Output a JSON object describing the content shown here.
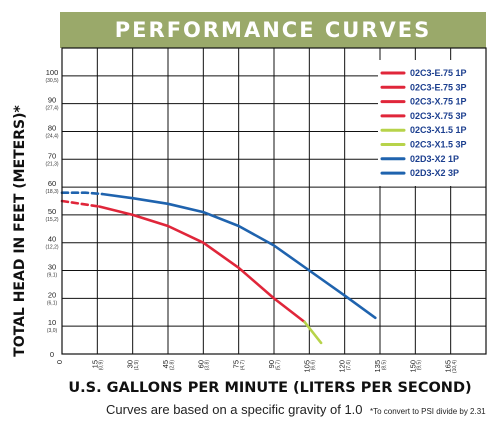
{
  "chart_data": {
    "type": "line",
    "title": "PERFORMANCE CURVES",
    "xlabel": "U.S. GALLONS PER MINUTE (LITERS PER SECOND)",
    "ylabel": "TOTAL HEAD IN FEET (METERS)*",
    "xlim": [
      0,
      180
    ],
    "ylim": [
      0,
      110
    ],
    "grid": true,
    "legend_position": "top-right",
    "x_ticks": [
      {
        "v": 0,
        "l": "0",
        "s": ""
      },
      {
        "v": 15,
        "l": "15",
        "s": "(0,9)"
      },
      {
        "v": 30,
        "l": "30",
        "s": "(1,9)"
      },
      {
        "v": 45,
        "l": "45",
        "s": "(2,8)"
      },
      {
        "v": 60,
        "l": "60",
        "s": "(3,8)"
      },
      {
        "v": 75,
        "l": "75",
        "s": "(4,7)"
      },
      {
        "v": 90,
        "l": "90",
        "s": "(5,7)"
      },
      {
        "v": 105,
        "l": "105",
        "s": "(6,6)"
      },
      {
        "v": 120,
        "l": "120",
        "s": "(7,6)"
      },
      {
        "v": 135,
        "l": "135",
        "s": "(8,5)"
      },
      {
        "v": 150,
        "l": "150",
        "s": "(9,5)"
      },
      {
        "v": 165,
        "l": "165",
        "s": "(10,4)"
      }
    ],
    "y_ticks": [
      {
        "v": 0,
        "l": "0",
        "s": ""
      },
      {
        "v": 10,
        "l": "10",
        "s": "(3,0)"
      },
      {
        "v": 20,
        "l": "20",
        "s": "(6,1)"
      },
      {
        "v": 30,
        "l": "30",
        "s": "(9,1)"
      },
      {
        "v": 40,
        "l": "40",
        "s": "(12,2)"
      },
      {
        "v": 50,
        "l": "50",
        "s": "(15,2)"
      },
      {
        "v": 60,
        "l": "60",
        "s": "(18,3)"
      },
      {
        "v": 70,
        "l": "70",
        "s": "(21,3)"
      },
      {
        "v": 80,
        "l": "80",
        "s": "(24,4)"
      },
      {
        "v": 90,
        "l": "90",
        "s": "(27,4)"
      },
      {
        "v": 100,
        "l": "100",
        "s": "(30,5)"
      }
    ],
    "legend": [
      {
        "label": "02C3-E.75 1P",
        "color": "#e0263a"
      },
      {
        "label": "02C3-E.75 3P",
        "color": "#e0263a"
      },
      {
        "label": "02C3-X.75 1P",
        "color": "#e0263a"
      },
      {
        "label": "02C3-X.75 3P",
        "color": "#e0263a"
      },
      {
        "label": "02C3-X1.5 1P",
        "color": "#b7d34a"
      },
      {
        "label": "02C3-X1.5 3P",
        "color": "#b7d34a"
      },
      {
        "label": "02D3-X2 1P",
        "color": "#1f63ae"
      },
      {
        "label": "02D3-X2 3P",
        "color": "#1f63ae"
      }
    ],
    "series": [
      {
        "group": "red",
        "color": "#e0263a",
        "dashed_x": [
          0,
          16
        ],
        "x": [
          0,
          8,
          16,
          30,
          45,
          60,
          75,
          90,
          103
        ],
        "y": [
          55,
          54,
          53,
          50,
          46,
          40,
          31,
          20,
          11.5
        ]
      },
      {
        "group": "green",
        "color": "#b7d34a",
        "x": [
          103,
          110
        ],
        "y": [
          11.5,
          4
        ]
      },
      {
        "group": "blue",
        "color": "#1f63ae",
        "dashed_x": [
          0,
          17
        ],
        "x": [
          0,
          10,
          17,
          30,
          45,
          60,
          75,
          90,
          105,
          120,
          133
        ],
        "y": [
          58,
          58,
          57.5,
          56,
          54,
          51,
          46,
          39,
          30,
          21,
          13
        ]
      }
    ]
  },
  "footnote": "Curves are based on a specific gravity of 1.0",
  "psi_note": "*To convert to PSI divide by 2.31"
}
